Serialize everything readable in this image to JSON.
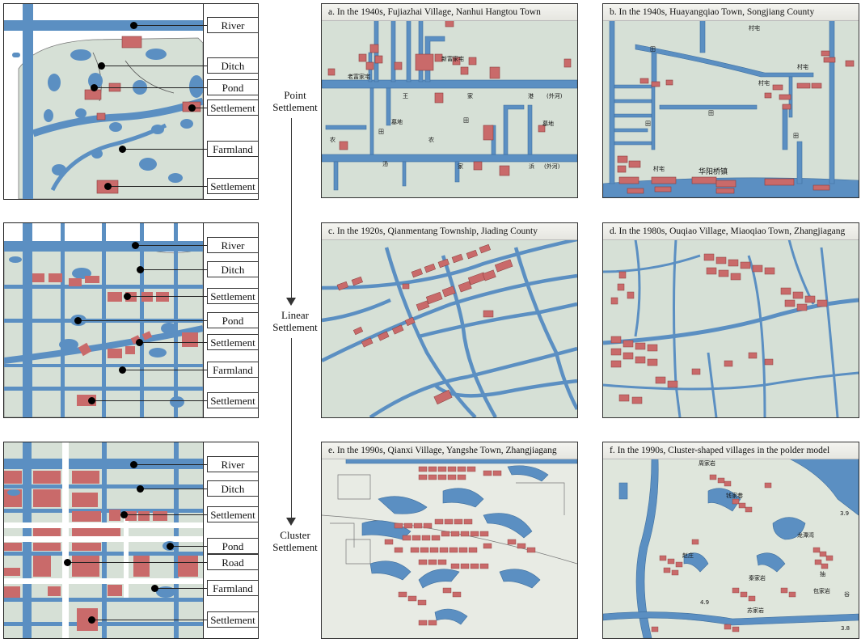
{
  "labels": {
    "river": "River",
    "ditch": "Ditch",
    "pond": "Pond",
    "settlement": "Settlement",
    "farmland": "Farmland",
    "road": "Road"
  },
  "types": {
    "point": "Point Settlement",
    "linear": "Linear Settlement",
    "cluster": "Cluster Settlement"
  },
  "captions": {
    "a": "a.  In the 1940s, Fujiazhai Village, Nanhui Hangtou Town",
    "b": "b.  In the 1940s, Huayangqiao Town, Songjiang County",
    "c": "c.  In the 1920s, Qianmentang Township, Jiading County",
    "d": "d.  In the 1980s, Ouqiao Village, Miaoqiao Town, Zhangjiagang",
    "e": "e.  In the 1990s, Qianxi Village, Yangshe Town, Zhangjiagang",
    "f": "f.  In the 1990s, Cluster-shaped villages in the polder model"
  },
  "map_text": {
    "a": [
      "老富家宅",
      "新富家宅",
      "王",
      "家",
      "港",
      "(外河)",
      "墓地",
      "墓地",
      "田",
      "田",
      "农",
      "农",
      "汤",
      "家",
      "浜",
      "(外河)"
    ],
    "b": [
      "村宅",
      "村宅",
      "村宅",
      "村宅",
      "田",
      "田",
      "田",
      "田",
      "华阳桥镇"
    ],
    "f": [
      "周家岩",
      "钱家巷",
      "龙潭湾",
      "赵庄",
      "秦家岩",
      "包家岩",
      "苏家岩",
      "抽",
      "谷",
      "3.9",
      "4.9",
      "3.8"
    ]
  },
  "colors": {
    "water": "#5b8fc2",
    "water_edge": "#3f6f9e",
    "land": "#d6e0d6",
    "building": "#c96a6a",
    "building_edge": "#8a3d3d"
  }
}
